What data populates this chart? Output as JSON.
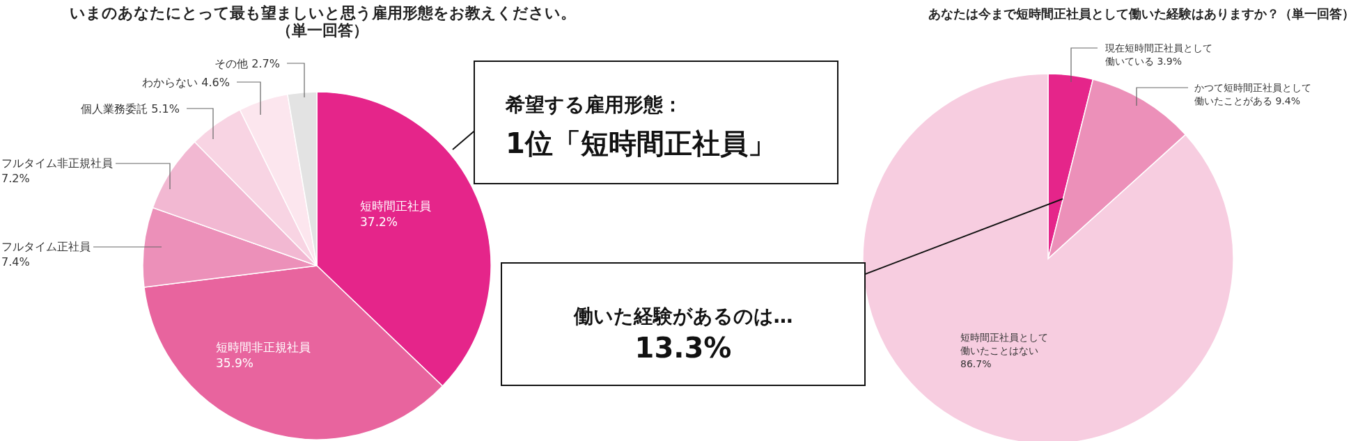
{
  "chart_data": [
    {
      "type": "pie",
      "title": "いまのあなたにとって最も望ましいと思う雇用形態をお教えください。（単一回答）",
      "categories": [
        "短時間正社員",
        "短時間非正規社員",
        "フルタイム正社員",
        "フルタイム非正規社員",
        "個人業務委託",
        "わからない",
        "その他"
      ],
      "values": [
        37.2,
        35.9,
        7.4,
        7.2,
        5.1,
        4.6,
        2.7
      ],
      "value_labels": [
        "37.2%",
        "35.9%",
        "7.4%",
        "7.2%",
        "5.1%",
        "4.6%",
        "2.7%"
      ],
      "colors": [
        "#e5258a",
        "#e8649e",
        "#ec90b9",
        "#f2b8d2",
        "#f8d4e3",
        "#fce6ee",
        "#e3e3e3"
      ],
      "annotations": [
        "希望する雇用形態：\n1位「短時間正社員」"
      ]
    },
    {
      "type": "pie",
      "title": "あなたは今まで短時間正社員として働いた経験はありますか？（単一回答）",
      "categories": [
        "現在短時間正社員として働いている",
        "かつて短時間正社員として働いたことがある",
        "短時間正社員として働いたことはない"
      ],
      "values": [
        3.9,
        9.4,
        86.7
      ],
      "value_labels": [
        "3.9%",
        "9.4%",
        "86.7%"
      ],
      "colors": [
        "#e5258a",
        "#ec90b9",
        "#f7cde0"
      ],
      "annotations": [
        "働いた経験があるのは…\n13.3%"
      ]
    }
  ]
}
